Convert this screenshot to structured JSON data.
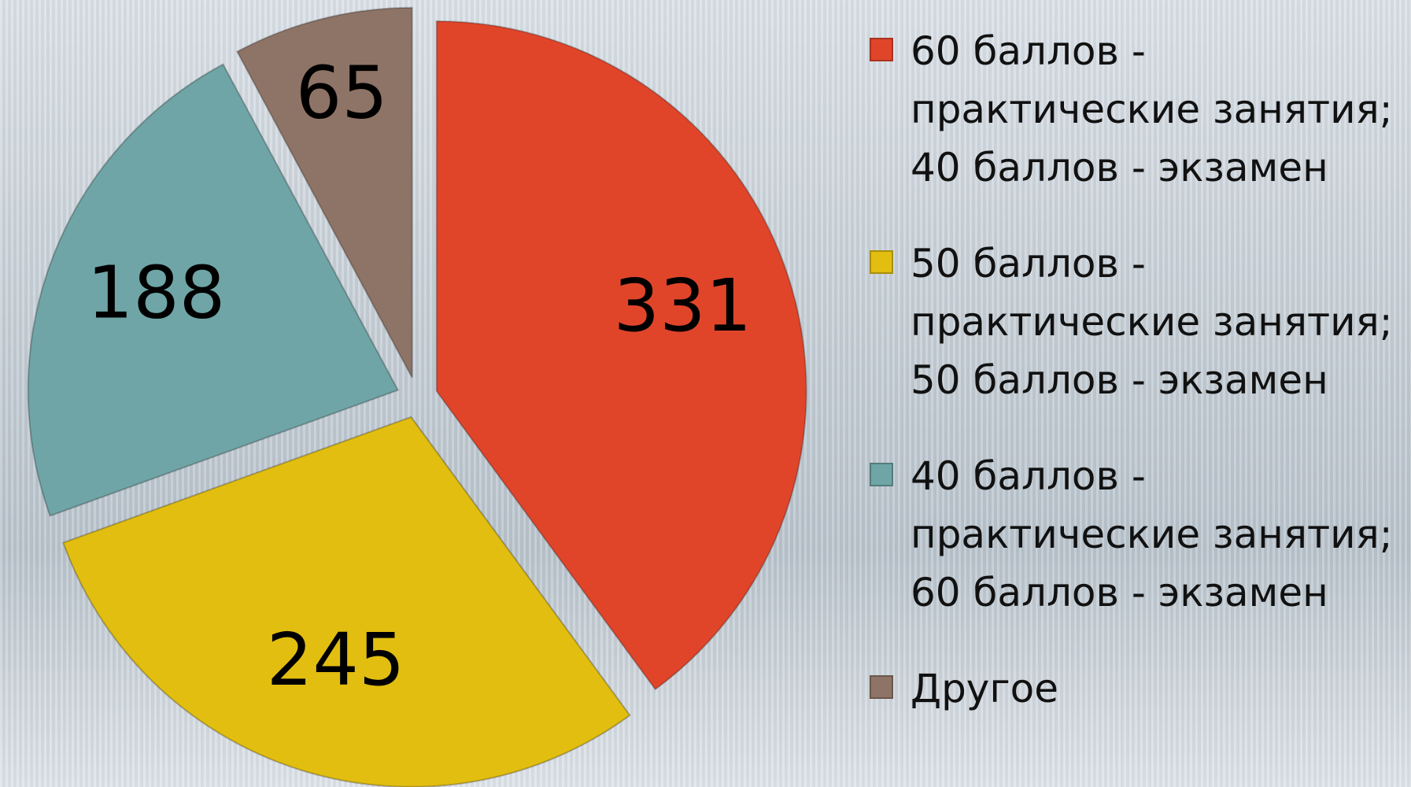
{
  "chart_data": {
    "type": "pie",
    "series": [
      {
        "name": "60 баллов - практические занятия; 40 баллов - экзамен",
        "color": "#e0452a",
        "values": [
          331
        ]
      },
      {
        "name": "50 баллов - практические занятия; 50 баллов - экзамен",
        "color": "#e2be10",
        "values": [
          245
        ]
      },
      {
        "name": "40 баллов - практические занятия; 60 баллов - экзамен",
        "color": "#6fa5a6",
        "values": [
          188
        ]
      },
      {
        "name": "Другое",
        "color": "#8e7466",
        "values": [
          65
        ]
      }
    ],
    "legend": "right"
  }
}
